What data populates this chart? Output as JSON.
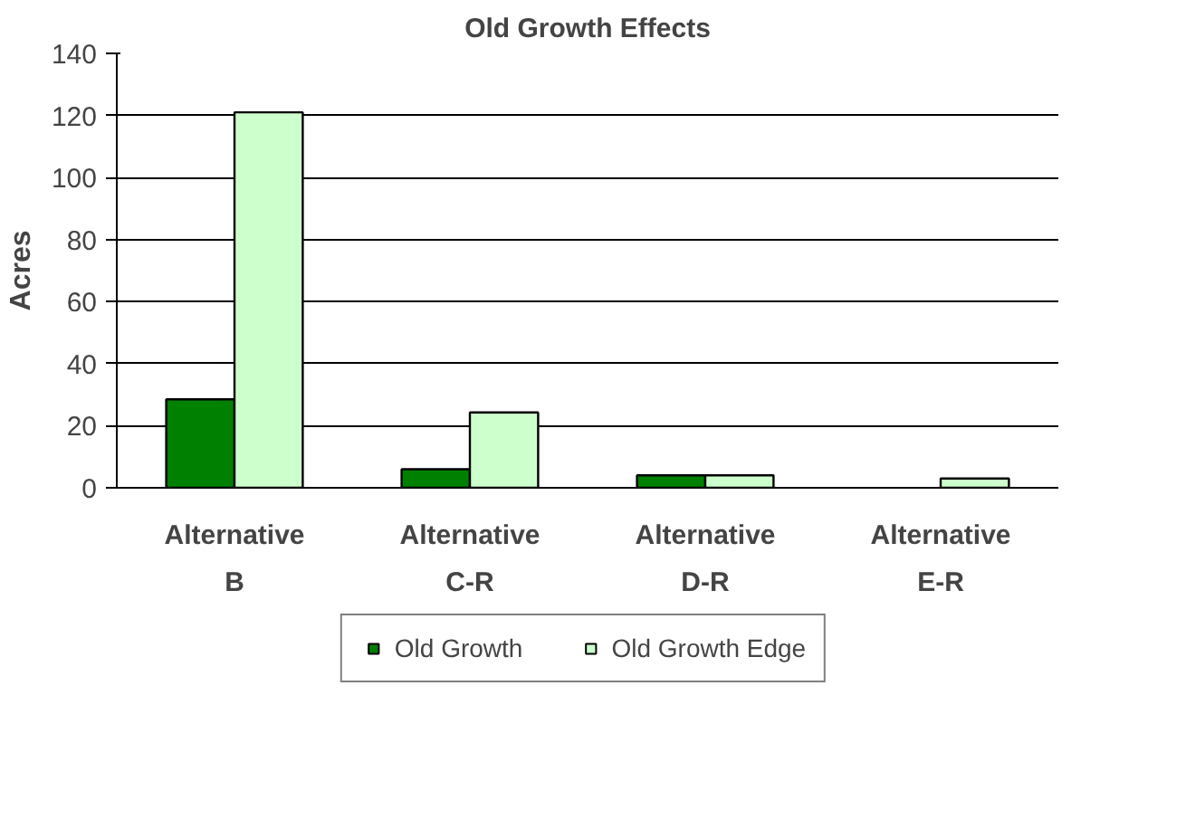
{
  "chart_data": {
    "type": "bar",
    "title": "Old Growth Effects",
    "ylabel": "Acres",
    "categories": [
      "Alternative\nB",
      "Alternative\nC-R",
      "Alternative\nD-R",
      "Alternative\nE-R"
    ],
    "series": [
      {
        "name": "Old Growth",
        "color": "#008000",
        "values": [
          28.5,
          6,
          4,
          null
        ]
      },
      {
        "name": "Old Growth Edge",
        "color": "#ccffcc",
        "values": [
          121,
          24.3,
          4,
          3
        ]
      }
    ],
    "ylim": [
      0,
      140
    ],
    "yticks": [
      0,
      20,
      40,
      60,
      80,
      100,
      120,
      140
    ],
    "grid": "y",
    "legend": "bottom"
  }
}
